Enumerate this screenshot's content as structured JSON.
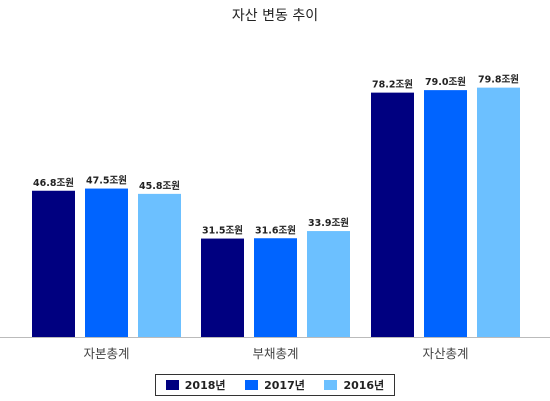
{
  "chart_data": {
    "type": "bar",
    "title": "자산 변동 추이",
    "xlabel": "",
    "ylabel": "",
    "categories": [
      "자본총계",
      "부채총계",
      "자산총계"
    ],
    "series": [
      {
        "name": "2018년",
        "color": "#000080",
        "values": [
          46.8,
          31.5,
          78.2
        ],
        "labels": [
          "46.8조원",
          "31.5조원",
          "78.2조원"
        ]
      },
      {
        "name": "2017년",
        "color": "#0064FF",
        "values": [
          47.5,
          31.6,
          79.0
        ],
        "labels": [
          "47.5조원",
          "31.6조원",
          "79.0조원"
        ]
      },
      {
        "name": "2016년",
        "color": "#6CC0FF",
        "values": [
          45.8,
          33.9,
          79.8
        ],
        "labels": [
          "45.8조원",
          "33.9조원",
          "79.8조원"
        ]
      }
    ],
    "ylim": [
      0,
      100
    ],
    "grid": false,
    "legend_position": "bottom"
  }
}
